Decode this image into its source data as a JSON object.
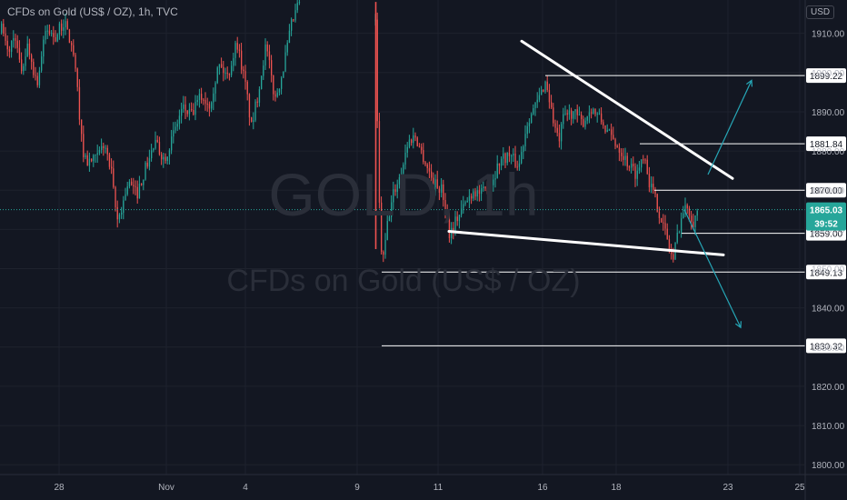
{
  "header": {
    "title": "CFDs on Gold (US$ / OZ), 1h, TVC",
    "currency_button": "USD"
  },
  "watermark": {
    "symbol": "GOLD, 1h",
    "name": "CFDs on Gold (US$ / OZ)"
  },
  "colors": {
    "background": "#131722",
    "up": "#26a69a",
    "down": "#ef5350",
    "grid": "#1e222d",
    "axis_text": "#b2b5be",
    "drawing": "#ffffff",
    "arrow": "#26a6b6",
    "price_tag": "#26a69a"
  },
  "chart_data": {
    "type": "candlestick",
    "title": "CFDs on Gold (US$ / OZ), 1h, TVC",
    "ylim": [
      1797.5,
      1918.5
    ],
    "y_ticks": [
      1800,
      1810,
      1820,
      1830,
      1840,
      1850,
      1860,
      1870,
      1880,
      1890,
      1900,
      1910
    ],
    "x_ticks": [
      "28",
      "Nov",
      "4",
      "9",
      "11",
      "16",
      "18",
      "23",
      "25"
    ],
    "current_price": "1865.03",
    "countdown": "39:52",
    "level_labels": [
      "1899.22",
      "1881.84",
      "1870.00",
      "1859.00",
      "1849.13",
      "1830.32"
    ],
    "levels": [
      1899.22,
      1881.84,
      1870.0,
      1859.0,
      1849.13,
      1830.32
    ],
    "path": [
      [
        0,
        1912
      ],
      [
        8,
        1905
      ],
      [
        16,
        1910
      ],
      [
        22,
        1900
      ],
      [
        30,
        1907
      ],
      [
        36,
        1901
      ],
      [
        40,
        1897
      ],
      [
        50,
        1911
      ],
      [
        60,
        1909
      ],
      [
        70,
        1913
      ],
      [
        80,
        1905
      ],
      [
        86,
        1892
      ],
      [
        90,
        1880
      ],
      [
        96,
        1877
      ],
      [
        106,
        1878
      ],
      [
        114,
        1882
      ],
      [
        122,
        1874
      ],
      [
        128,
        1862
      ],
      [
        134,
        1866
      ],
      [
        140,
        1872
      ],
      [
        150,
        1869
      ],
      [
        160,
        1876
      ],
      [
        170,
        1882
      ],
      [
        180,
        1878
      ],
      [
        190,
        1884
      ],
      [
        200,
        1891
      ],
      [
        210,
        1889
      ],
      [
        220,
        1894
      ],
      [
        230,
        1892
      ],
      [
        240,
        1902
      ],
      [
        250,
        1899
      ],
      [
        260,
        1908
      ],
      [
        270,
        1896
      ],
      [
        276,
        1886
      ],
      [
        282,
        1893
      ],
      [
        292,
        1907
      ],
      [
        302,
        1893
      ],
      [
        310,
        1900
      ],
      [
        320,
        1912
      ],
      [
        330,
        1919
      ],
      [
        412,
        1917
      ],
      [
        416,
        1870
      ],
      [
        420,
        1850
      ],
      [
        426,
        1862
      ],
      [
        432,
        1869
      ],
      [
        440,
        1874
      ],
      [
        448,
        1882
      ],
      [
        456,
        1884
      ],
      [
        466,
        1878
      ],
      [
        476,
        1872
      ],
      [
        486,
        1870
      ],
      [
        494,
        1859
      ],
      [
        500,
        1862
      ],
      [
        510,
        1866
      ],
      [
        520,
        1870
      ],
      [
        530,
        1869
      ],
      [
        540,
        1872
      ],
      [
        550,
        1878
      ],
      [
        560,
        1879
      ],
      [
        570,
        1876
      ],
      [
        580,
        1888
      ],
      [
        590,
        1892
      ],
      [
        600,
        1898
      ],
      [
        608,
        1888
      ],
      [
        614,
        1882
      ],
      [
        620,
        1889
      ],
      [
        630,
        1890
      ],
      [
        640,
        1887
      ],
      [
        650,
        1891
      ],
      [
        660,
        1888
      ],
      [
        670,
        1884
      ],
      [
        680,
        1881
      ],
      [
        690,
        1877
      ],
      [
        700,
        1874
      ],
      [
        708,
        1880
      ],
      [
        714,
        1872
      ],
      [
        720,
        1868
      ],
      [
        728,
        1862
      ],
      [
        734,
        1857
      ],
      [
        740,
        1852
      ],
      [
        744,
        1858
      ],
      [
        750,
        1864
      ],
      [
        756,
        1866
      ],
      [
        762,
        1862
      ],
      [
        768,
        1865
      ]
    ],
    "drawings": {
      "trendlines": [
        {
          "from": [
            574,
            1908
          ],
          "to": [
            806,
            1873
          ]
        },
        {
          "from": [
            494,
            1859.5
          ],
          "to": [
            796,
            1853.5
          ]
        }
      ],
      "arrows": [
        {
          "from": [
            779,
            1874
          ],
          "to": [
            827,
            1898
          ]
        },
        {
          "from": [
            753,
            1865
          ],
          "to": [
            815,
            1835
          ]
        }
      ]
    }
  }
}
